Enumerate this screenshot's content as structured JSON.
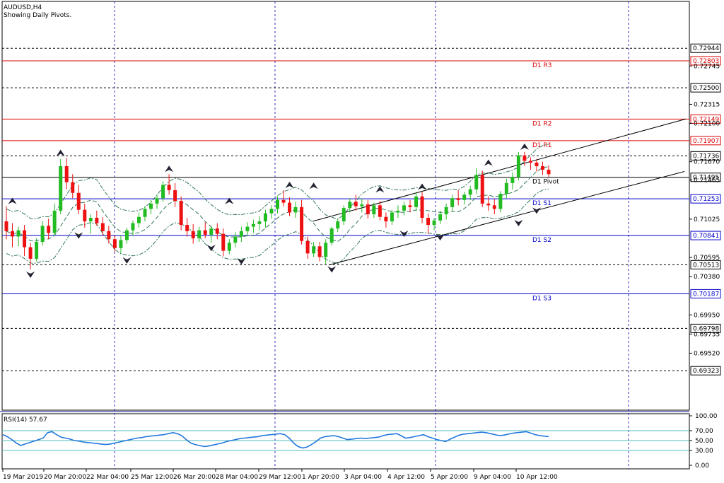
{
  "chart_data": [
    {
      "type": "candlestick",
      "title": "AUDUSD,H4",
      "subtitle": "Showing Daily Pivots.",
      "ylim": [
        0.6888,
        0.7347
      ],
      "y_ticks": [
        "0.72745",
        "0.72315",
        "0.72100",
        "0.71670",
        "0.71465",
        "0.71025",
        "0.70595",
        "0.70380",
        "0.69950",
        "0.69735",
        "0.69520"
      ],
      "x_ticks": [
        "19 Mar 2019",
        "20 Mar 20:00",
        "22 Mar 04:00",
        "25 Mar 12:00",
        "26 Mar 20:00",
        "28 Mar 04:00",
        "29 Mar 12:00",
        "1 Apr 20:00",
        "3 Apr 04:00",
        "4 Apr 12:00",
        "5 Apr 20:00",
        "9 Apr 04:00",
        "10 Apr 12:00"
      ],
      "pivot_levels": [
        {
          "name": "D1  R3",
          "value": 0.72803,
          "label": "0.72803",
          "color": "#dd0000"
        },
        {
          "name": "D1  R2",
          "value": 0.72149,
          "label": "0.72149",
          "color": "#dd0000"
        },
        {
          "name": "D1  R1",
          "value": 0.71907,
          "label": "0.71907",
          "color": "#dd0000"
        },
        {
          "name": "D1  Pivot",
          "value": 0.71495,
          "label": "0.71495",
          "color": "#000000"
        },
        {
          "name": "D1  S1",
          "value": 0.71253,
          "label": "0.71253",
          "color": "#0000cc"
        },
        {
          "name": "D1  S2",
          "value": 0.70841,
          "label": "0.70841",
          "color": "#0000cc"
        },
        {
          "name": "D1  S3",
          "value": 0.70187,
          "label": "0.70187",
          "color": "#0000cc"
        }
      ],
      "dashed_levels": [
        {
          "value": 0.72944,
          "label": "0.72944"
        },
        {
          "value": 0.725,
          "label": "0.72500"
        },
        {
          "value": 0.71736,
          "label": "0.71736"
        },
        {
          "value": 0.70513,
          "label": "0.70513"
        },
        {
          "value": 0.69798,
          "label": "0.69798"
        },
        {
          "value": 0.69323,
          "label": "0.69323"
        }
      ],
      "trend_lines": [
        {
          "from": [
            442,
            0.71
          ],
          "to": [
            970,
            0.7215
          ]
        },
        {
          "from": [
            465,
            0.7051
          ],
          "to": [
            968,
            0.7156
          ]
        }
      ],
      "candle_colors": {
        "up": "#22bb22",
        "down": "#ee1111"
      },
      "candles": [
        {
          "o": 0.71,
          "h": 0.7117,
          "l": 0.708,
          "c": 0.7089
        },
        {
          "o": 0.7089,
          "h": 0.7098,
          "l": 0.7071,
          "c": 0.7083
        },
        {
          "o": 0.7083,
          "h": 0.7094,
          "l": 0.7072,
          "c": 0.709
        },
        {
          "o": 0.709,
          "h": 0.7096,
          "l": 0.7061,
          "c": 0.7071
        },
        {
          "o": 0.7071,
          "h": 0.7076,
          "l": 0.7046,
          "c": 0.7058
        },
        {
          "o": 0.7058,
          "h": 0.7081,
          "l": 0.7055,
          "c": 0.7077
        },
        {
          "o": 0.7077,
          "h": 0.71,
          "l": 0.7073,
          "c": 0.7095
        },
        {
          "o": 0.7095,
          "h": 0.7103,
          "l": 0.708,
          "c": 0.7087
        },
        {
          "o": 0.7087,
          "h": 0.712,
          "l": 0.7085,
          "c": 0.7112
        },
        {
          "o": 0.7112,
          "h": 0.717,
          "l": 0.7108,
          "c": 0.7162
        },
        {
          "o": 0.7162,
          "h": 0.7171,
          "l": 0.7136,
          "c": 0.7144
        },
        {
          "o": 0.7144,
          "h": 0.7153,
          "l": 0.7126,
          "c": 0.7132
        },
        {
          "o": 0.7132,
          "h": 0.7141,
          "l": 0.7108,
          "c": 0.7113
        },
        {
          "o": 0.7113,
          "h": 0.712,
          "l": 0.7093,
          "c": 0.71
        },
        {
          "o": 0.71,
          "h": 0.7108,
          "l": 0.7086,
          "c": 0.7104
        },
        {
          "o": 0.7104,
          "h": 0.7112,
          "l": 0.7095,
          "c": 0.7098
        },
        {
          "o": 0.7098,
          "h": 0.7105,
          "l": 0.7084,
          "c": 0.7089
        },
        {
          "o": 0.7089,
          "h": 0.7095,
          "l": 0.7075,
          "c": 0.708
        },
        {
          "o": 0.708,
          "h": 0.7085,
          "l": 0.7066,
          "c": 0.707
        },
        {
          "o": 0.707,
          "h": 0.7084,
          "l": 0.7064,
          "c": 0.7079
        },
        {
          "o": 0.7079,
          "h": 0.7093,
          "l": 0.7075,
          "c": 0.709
        },
        {
          "o": 0.709,
          "h": 0.7101,
          "l": 0.7084,
          "c": 0.7098
        },
        {
          "o": 0.7098,
          "h": 0.711,
          "l": 0.7093,
          "c": 0.7105
        },
        {
          "o": 0.7105,
          "h": 0.7117,
          "l": 0.71,
          "c": 0.7114
        },
        {
          "o": 0.7114,
          "h": 0.7124,
          "l": 0.7108,
          "c": 0.712
        },
        {
          "o": 0.712,
          "h": 0.713,
          "l": 0.7114,
          "c": 0.7126
        },
        {
          "o": 0.7126,
          "h": 0.7145,
          "l": 0.7122,
          "c": 0.7141
        },
        {
          "o": 0.7141,
          "h": 0.7153,
          "l": 0.713,
          "c": 0.7135
        },
        {
          "o": 0.7135,
          "h": 0.7143,
          "l": 0.7116,
          "c": 0.7123
        },
        {
          "o": 0.7123,
          "h": 0.7128,
          "l": 0.709,
          "c": 0.7096
        },
        {
          "o": 0.7096,
          "h": 0.7104,
          "l": 0.7083,
          "c": 0.7089
        },
        {
          "o": 0.7089,
          "h": 0.7097,
          "l": 0.7075,
          "c": 0.7081
        },
        {
          "o": 0.7081,
          "h": 0.7094,
          "l": 0.7077,
          "c": 0.709
        },
        {
          "o": 0.709,
          "h": 0.7099,
          "l": 0.7081,
          "c": 0.7085
        },
        {
          "o": 0.7085,
          "h": 0.7095,
          "l": 0.7076,
          "c": 0.7092
        },
        {
          "o": 0.7092,
          "h": 0.7098,
          "l": 0.708,
          "c": 0.7086
        },
        {
          "o": 0.7086,
          "h": 0.7092,
          "l": 0.7061,
          "c": 0.7067
        },
        {
          "o": 0.7067,
          "h": 0.708,
          "l": 0.7063,
          "c": 0.7076
        },
        {
          "o": 0.7076,
          "h": 0.7088,
          "l": 0.7071,
          "c": 0.7083
        },
        {
          "o": 0.7083,
          "h": 0.7094,
          "l": 0.7077,
          "c": 0.7089
        },
        {
          "o": 0.7089,
          "h": 0.7099,
          "l": 0.7084,
          "c": 0.7094
        },
        {
          "o": 0.7094,
          "h": 0.7102,
          "l": 0.7087,
          "c": 0.7097
        },
        {
          "o": 0.7097,
          "h": 0.7106,
          "l": 0.709,
          "c": 0.71
        },
        {
          "o": 0.71,
          "h": 0.7113,
          "l": 0.7093,
          "c": 0.7109
        },
        {
          "o": 0.7109,
          "h": 0.7118,
          "l": 0.7103,
          "c": 0.7114
        },
        {
          "o": 0.7114,
          "h": 0.7128,
          "l": 0.7109,
          "c": 0.7124
        },
        {
          "o": 0.7124,
          "h": 0.7135,
          "l": 0.7117,
          "c": 0.7121
        },
        {
          "o": 0.7121,
          "h": 0.7127,
          "l": 0.7106,
          "c": 0.711
        },
        {
          "o": 0.711,
          "h": 0.7122,
          "l": 0.7104,
          "c": 0.7116
        },
        {
          "o": 0.7116,
          "h": 0.7124,
          "l": 0.7074,
          "c": 0.7078
        },
        {
          "o": 0.7078,
          "h": 0.7083,
          "l": 0.7058,
          "c": 0.7064
        },
        {
          "o": 0.7064,
          "h": 0.7077,
          "l": 0.706,
          "c": 0.7072
        },
        {
          "o": 0.7072,
          "h": 0.7077,
          "l": 0.7055,
          "c": 0.706
        },
        {
          "o": 0.706,
          "h": 0.708,
          "l": 0.7052,
          "c": 0.7076
        },
        {
          "o": 0.7076,
          "h": 0.7094,
          "l": 0.7073,
          "c": 0.7092
        },
        {
          "o": 0.7092,
          "h": 0.7103,
          "l": 0.7088,
          "c": 0.71
        },
        {
          "o": 0.71,
          "h": 0.7118,
          "l": 0.7096,
          "c": 0.7115
        },
        {
          "o": 0.7115,
          "h": 0.7126,
          "l": 0.711,
          "c": 0.7122
        },
        {
          "o": 0.7122,
          "h": 0.713,
          "l": 0.7112,
          "c": 0.7117
        },
        {
          "o": 0.7117,
          "h": 0.7126,
          "l": 0.711,
          "c": 0.7119
        },
        {
          "o": 0.7119,
          "h": 0.7124,
          "l": 0.7103,
          "c": 0.7108
        },
        {
          "o": 0.7108,
          "h": 0.7121,
          "l": 0.7104,
          "c": 0.7118
        },
        {
          "o": 0.7118,
          "h": 0.7123,
          "l": 0.7101,
          "c": 0.7105
        },
        {
          "o": 0.7105,
          "h": 0.711,
          "l": 0.7093,
          "c": 0.71
        },
        {
          "o": 0.71,
          "h": 0.7113,
          "l": 0.7096,
          "c": 0.711
        },
        {
          "o": 0.711,
          "h": 0.7118,
          "l": 0.7104,
          "c": 0.7112
        },
        {
          "o": 0.7112,
          "h": 0.7122,
          "l": 0.7107,
          "c": 0.7118
        },
        {
          "o": 0.7118,
          "h": 0.7124,
          "l": 0.711,
          "c": 0.7116
        },
        {
          "o": 0.7116,
          "h": 0.7133,
          "l": 0.7112,
          "c": 0.7128
        },
        {
          "o": 0.7128,
          "h": 0.7133,
          "l": 0.7098,
          "c": 0.7104
        },
        {
          "o": 0.7104,
          "h": 0.7109,
          "l": 0.7086,
          "c": 0.7096
        },
        {
          "o": 0.7096,
          "h": 0.7104,
          "l": 0.709,
          "c": 0.7101
        },
        {
          "o": 0.7101,
          "h": 0.7112,
          "l": 0.7097,
          "c": 0.7108
        },
        {
          "o": 0.7108,
          "h": 0.712,
          "l": 0.7102,
          "c": 0.7116
        },
        {
          "o": 0.7116,
          "h": 0.713,
          "l": 0.7112,
          "c": 0.7126
        },
        {
          "o": 0.7126,
          "h": 0.7135,
          "l": 0.7118,
          "c": 0.7124
        },
        {
          "o": 0.7124,
          "h": 0.7133,
          "l": 0.7119,
          "c": 0.713
        },
        {
          "o": 0.713,
          "h": 0.714,
          "l": 0.7124,
          "c": 0.7136
        },
        {
          "o": 0.7136,
          "h": 0.716,
          "l": 0.7131,
          "c": 0.7152
        },
        {
          "o": 0.7152,
          "h": 0.7157,
          "l": 0.7116,
          "c": 0.712
        },
        {
          "o": 0.712,
          "h": 0.7128,
          "l": 0.7112,
          "c": 0.7118
        },
        {
          "o": 0.7118,
          "h": 0.7125,
          "l": 0.7108,
          "c": 0.7114
        },
        {
          "o": 0.7114,
          "h": 0.7134,
          "l": 0.711,
          "c": 0.7131
        },
        {
          "o": 0.7131,
          "h": 0.7148,
          "l": 0.7126,
          "c": 0.7143
        },
        {
          "o": 0.7143,
          "h": 0.7155,
          "l": 0.7136,
          "c": 0.715
        },
        {
          "o": 0.715,
          "h": 0.7178,
          "l": 0.7146,
          "c": 0.7174
        },
        {
          "o": 0.7174,
          "h": 0.7178,
          "l": 0.7162,
          "c": 0.7168
        },
        {
          "o": 0.7168,
          "h": 0.7172,
          "l": 0.7158,
          "c": 0.7166
        },
        {
          "o": 0.7166,
          "h": 0.717,
          "l": 0.7156,
          "c": 0.7162
        },
        {
          "o": 0.7162,
          "h": 0.7167,
          "l": 0.7152,
          "c": 0.7158
        },
        {
          "o": 0.7158,
          "h": 0.7163,
          "l": 0.715,
          "c": 0.7153
        }
      ],
      "fractals_up": [
        {
          "i": 1,
          "v": 0.7117
        },
        {
          "i": 9,
          "v": 0.7171
        },
        {
          "i": 27,
          "v": 0.7153
        },
        {
          "i": 37,
          "v": 0.7117
        },
        {
          "i": 47,
          "v": 0.7135
        },
        {
          "i": 51,
          "v": 0.7134
        },
        {
          "i": 62,
          "v": 0.713
        },
        {
          "i": 69,
          "v": 0.7133
        },
        {
          "i": 80,
          "v": 0.716
        },
        {
          "i": 86,
          "v": 0.7178
        }
      ],
      "fractals_down": [
        {
          "i": 4,
          "v": 0.7046
        },
        {
          "i": 12,
          "v": 0.709
        },
        {
          "i": 20,
          "v": 0.7062
        },
        {
          "i": 34,
          "v": 0.7076
        },
        {
          "i": 39,
          "v": 0.7061
        },
        {
          "i": 54,
          "v": 0.7052
        },
        {
          "i": 66,
          "v": 0.7092
        },
        {
          "i": 72,
          "v": 0.7088
        },
        {
          "i": 85,
          "v": 0.7104
        },
        {
          "i": 88,
          "v": 0.7118
        }
      ],
      "bands_style": "dash-dot"
    },
    {
      "type": "line",
      "title": "RSI(14) 57.67",
      "ylim": [
        0,
        100
      ],
      "y_ticks": [
        "100.00",
        "70.00",
        "50.00",
        "30.00",
        "0.00"
      ],
      "levels": [
        70,
        50,
        30
      ],
      "values": [
        62,
        58,
        52,
        45,
        40,
        43,
        46,
        49,
        52,
        55,
        66,
        68,
        62,
        57,
        55,
        53,
        50,
        49,
        47,
        46,
        45,
        44,
        43,
        42,
        43,
        45,
        47,
        49,
        51,
        53,
        55,
        56,
        58,
        59,
        60,
        61,
        62,
        64,
        66,
        64,
        60,
        52,
        45,
        42,
        40,
        38,
        39,
        41,
        43,
        45,
        48,
        50,
        52,
        54,
        55,
        56,
        57,
        58,
        60,
        61,
        62,
        63,
        64,
        62,
        55,
        45,
        38,
        35,
        37,
        42,
        48,
        55,
        58,
        59,
        60,
        58,
        55,
        52,
        53,
        54,
        55,
        54,
        55,
        56,
        57,
        60,
        62,
        63,
        64,
        60,
        55,
        56,
        58,
        60,
        62,
        58,
        55,
        52,
        50,
        48,
        53,
        57,
        61,
        63,
        64,
        65,
        66,
        67,
        66,
        64,
        62,
        60,
        61,
        63,
        65,
        66,
        67,
        68,
        65,
        62,
        60,
        59,
        58
      ]
    }
  ]
}
